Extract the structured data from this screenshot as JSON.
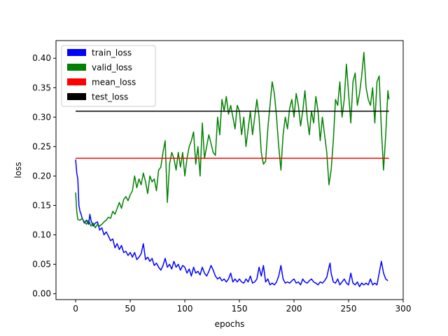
{
  "chart_data": {
    "type": "line",
    "title": "",
    "xlabel": "epochs",
    "ylabel": "loss",
    "xlim": [
      -18,
      300
    ],
    "ylim": [
      -0.01,
      0.43
    ],
    "xticks": [
      0,
      50,
      100,
      150,
      200,
      250,
      300
    ],
    "xtick_labels": [
      "0",
      "50",
      "100",
      "150",
      "200",
      "250",
      "300"
    ],
    "yticks": [
      0.0,
      0.05,
      0.1,
      0.15,
      0.2,
      0.25,
      0.3,
      0.35,
      0.4
    ],
    "ytick_labels": [
      "0.00",
      "0.05",
      "0.10",
      "0.15",
      "0.20",
      "0.25",
      "0.30",
      "0.35",
      "0.40"
    ],
    "grid": false,
    "legend_position": "top-left",
    "series": [
      {
        "name": "train_loss",
        "color": "#0000ff",
        "points": [
          [
            0,
            0.228
          ],
          [
            1,
            0.205
          ],
          [
            2,
            0.195
          ],
          [
            3,
            0.15
          ],
          [
            4,
            0.14
          ],
          [
            5,
            0.135
          ],
          [
            6,
            0.128
          ],
          [
            8,
            0.12
          ],
          [
            10,
            0.125
          ],
          [
            12,
            0.118
          ],
          [
            13,
            0.135
          ],
          [
            14,
            0.125
          ],
          [
            16,
            0.115
          ],
          [
            18,
            0.12
          ],
          [
            20,
            0.122
          ],
          [
            22,
            0.108
          ],
          [
            24,
            0.112
          ],
          [
            26,
            0.1
          ],
          [
            28,
            0.105
          ],
          [
            30,
            0.098
          ],
          [
            32,
            0.09
          ],
          [
            34,
            0.093
          ],
          [
            36,
            0.078
          ],
          [
            38,
            0.085
          ],
          [
            40,
            0.075
          ],
          [
            42,
            0.082
          ],
          [
            44,
            0.07
          ],
          [
            46,
            0.072
          ],
          [
            48,
            0.065
          ],
          [
            50,
            0.07
          ],
          [
            52,
            0.062
          ],
          [
            54,
            0.07
          ],
          [
            56,
            0.058
          ],
          [
            58,
            0.062
          ],
          [
            60,
            0.068
          ],
          [
            62,
            0.085
          ],
          [
            64,
            0.058
          ],
          [
            66,
            0.062
          ],
          [
            68,
            0.055
          ],
          [
            70,
            0.06
          ],
          [
            72,
            0.048
          ],
          [
            74,
            0.052
          ],
          [
            76,
            0.045
          ],
          [
            78,
            0.04
          ],
          [
            80,
            0.048
          ],
          [
            82,
            0.06
          ],
          [
            84,
            0.045
          ],
          [
            86,
            0.05
          ],
          [
            88,
            0.042
          ],
          [
            90,
            0.055
          ],
          [
            92,
            0.045
          ],
          [
            94,
            0.05
          ],
          [
            96,
            0.04
          ],
          [
            98,
            0.048
          ],
          [
            100,
            0.045
          ],
          [
            102,
            0.035
          ],
          [
            104,
            0.042
          ],
          [
            106,
            0.03
          ],
          [
            108,
            0.045
          ],
          [
            110,
            0.035
          ],
          [
            112,
            0.038
          ],
          [
            114,
            0.032
          ],
          [
            116,
            0.045
          ],
          [
            118,
            0.035
          ],
          [
            120,
            0.03
          ],
          [
            122,
            0.038
          ],
          [
            124,
            0.048
          ],
          [
            126,
            0.04
          ],
          [
            128,
            0.03
          ],
          [
            130,
            0.025
          ],
          [
            132,
            0.028
          ],
          [
            134,
            0.022
          ],
          [
            136,
            0.025
          ],
          [
            138,
            0.02
          ],
          [
            140,
            0.025
          ],
          [
            142,
            0.035
          ],
          [
            144,
            0.02
          ],
          [
            146,
            0.025
          ],
          [
            148,
            0.02
          ],
          [
            150,
            0.025
          ],
          [
            152,
            0.02
          ],
          [
            154,
            0.018
          ],
          [
            156,
            0.025
          ],
          [
            158,
            0.02
          ],
          [
            160,
            0.03
          ],
          [
            162,
            0.018
          ],
          [
            164,
            0.02
          ],
          [
            166,
            0.025
          ],
          [
            168,
            0.045
          ],
          [
            170,
            0.03
          ],
          [
            172,
            0.048
          ],
          [
            174,
            0.02
          ],
          [
            176,
            0.025
          ],
          [
            178,
            0.015
          ],
          [
            180,
            0.018
          ],
          [
            182,
            0.015
          ],
          [
            184,
            0.02
          ],
          [
            186,
            0.03
          ],
          [
            188,
            0.048
          ],
          [
            190,
            0.025
          ],
          [
            192,
            0.018
          ],
          [
            194,
            0.02
          ],
          [
            196,
            0.018
          ],
          [
            198,
            0.022
          ],
          [
            200,
            0.025
          ],
          [
            202,
            0.018
          ],
          [
            204,
            0.02
          ],
          [
            206,
            0.015
          ],
          [
            208,
            0.025
          ],
          [
            210,
            0.02
          ],
          [
            212,
            0.018
          ],
          [
            214,
            0.022
          ],
          [
            216,
            0.025
          ],
          [
            218,
            0.02
          ],
          [
            220,
            0.018
          ],
          [
            222,
            0.015
          ],
          [
            224,
            0.02
          ],
          [
            226,
            0.018
          ],
          [
            228,
            0.022
          ],
          [
            230,
            0.028
          ],
          [
            232,
            0.045
          ],
          [
            233,
            0.052
          ],
          [
            234,
            0.035
          ],
          [
            236,
            0.02
          ],
          [
            238,
            0.018
          ],
          [
            240,
            0.025
          ],
          [
            242,
            0.015
          ],
          [
            244,
            0.02
          ],
          [
            246,
            0.025
          ],
          [
            248,
            0.018
          ],
          [
            250,
            0.015
          ],
          [
            252,
            0.035
          ],
          [
            254,
            0.018
          ],
          [
            256,
            0.015
          ],
          [
            258,
            0.02
          ],
          [
            260,
            0.012
          ],
          [
            262,
            0.018
          ],
          [
            264,
            0.015
          ],
          [
            266,
            0.018
          ],
          [
            268,
            0.015
          ],
          [
            270,
            0.025
          ],
          [
            272,
            0.015
          ],
          [
            274,
            0.018
          ],
          [
            276,
            0.015
          ],
          [
            278,
            0.035
          ],
          [
            280,
            0.055
          ],
          [
            282,
            0.035
          ],
          [
            284,
            0.025
          ],
          [
            286,
            0.022
          ]
        ]
      },
      {
        "name": "valid_loss",
        "color": "#008000",
        "points": [
          [
            0,
            0.172
          ],
          [
            1,
            0.14
          ],
          [
            2,
            0.126
          ],
          [
            4,
            0.125
          ],
          [
            6,
            0.128
          ],
          [
            8,
            0.122
          ],
          [
            10,
            0.118
          ],
          [
            12,
            0.125
          ],
          [
            14,
            0.115
          ],
          [
            16,
            0.12
          ],
          [
            18,
            0.112
          ],
          [
            20,
            0.118
          ],
          [
            22,
            0.115
          ],
          [
            24,
            0.118
          ],
          [
            26,
            0.122
          ],
          [
            28,
            0.125
          ],
          [
            30,
            0.13
          ],
          [
            32,
            0.128
          ],
          [
            34,
            0.14
          ],
          [
            36,
            0.135
          ],
          [
            38,
            0.145
          ],
          [
            40,
            0.155
          ],
          [
            42,
            0.145
          ],
          [
            44,
            0.16
          ],
          [
            46,
            0.165
          ],
          [
            48,
            0.158
          ],
          [
            50,
            0.168
          ],
          [
            52,
            0.175
          ],
          [
            54,
            0.2
          ],
          [
            56,
            0.18
          ],
          [
            58,
            0.195
          ],
          [
            60,
            0.185
          ],
          [
            62,
            0.205
          ],
          [
            64,
            0.19
          ],
          [
            66,
            0.17
          ],
          [
            68,
            0.2
          ],
          [
            70,
            0.19
          ],
          [
            72,
            0.195
          ],
          [
            74,
            0.175
          ],
          [
            76,
            0.21
          ],
          [
            78,
            0.215
          ],
          [
            80,
            0.24
          ],
          [
            82,
            0.26
          ],
          [
            84,
            0.155
          ],
          [
            86,
            0.22
          ],
          [
            88,
            0.24
          ],
          [
            90,
            0.23
          ],
          [
            92,
            0.21
          ],
          [
            94,
            0.24
          ],
          [
            96,
            0.215
          ],
          [
            98,
            0.24
          ],
          [
            100,
            0.2
          ],
          [
            102,
            0.23
          ],
          [
            104,
            0.25
          ],
          [
            106,
            0.26
          ],
          [
            108,
            0.275
          ],
          [
            110,
            0.22
          ],
          [
            112,
            0.25
          ],
          [
            114,
            0.2
          ],
          [
            116,
            0.29
          ],
          [
            118,
            0.23
          ],
          [
            120,
            0.25
          ],
          [
            122,
            0.27
          ],
          [
            124,
            0.255
          ],
          [
            126,
            0.24
          ],
          [
            128,
            0.235
          ],
          [
            130,
            0.3
          ],
          [
            132,
            0.27
          ],
          [
            134,
            0.33
          ],
          [
            136,
            0.31
          ],
          [
            138,
            0.335
          ],
          [
            140,
            0.305
          ],
          [
            142,
            0.32
          ],
          [
            144,
            0.3
          ],
          [
            146,
            0.28
          ],
          [
            148,
            0.32
          ],
          [
            150,
            0.31
          ],
          [
            152,
            0.27
          ],
          [
            154,
            0.3
          ],
          [
            156,
            0.25
          ],
          [
            158,
            0.28
          ],
          [
            160,
            0.31
          ],
          [
            162,
            0.27
          ],
          [
            164,
            0.3
          ],
          [
            166,
            0.33
          ],
          [
            168,
            0.3
          ],
          [
            170,
            0.24
          ],
          [
            172,
            0.22
          ],
          [
            174,
            0.225
          ],
          [
            176,
            0.28
          ],
          [
            178,
            0.32
          ],
          [
            180,
            0.36
          ],
          [
            182,
            0.34
          ],
          [
            184,
            0.3
          ],
          [
            186,
            0.25
          ],
          [
            188,
            0.21
          ],
          [
            190,
            0.27
          ],
          [
            192,
            0.3
          ],
          [
            194,
            0.28
          ],
          [
            196,
            0.315
          ],
          [
            198,
            0.33
          ],
          [
            200,
            0.3
          ],
          [
            202,
            0.34
          ],
          [
            204,
            0.32
          ],
          [
            206,
            0.285
          ],
          [
            208,
            0.31
          ],
          [
            210,
            0.345
          ],
          [
            212,
            0.3
          ],
          [
            214,
            0.27
          ],
          [
            216,
            0.31
          ],
          [
            218,
            0.29
          ],
          [
            220,
            0.335
          ],
          [
            222,
            0.31
          ],
          [
            224,
            0.26
          ],
          [
            226,
            0.3
          ],
          [
            228,
            0.27
          ],
          [
            230,
            0.24
          ],
          [
            232,
            0.185
          ],
          [
            234,
            0.21
          ],
          [
            236,
            0.26
          ],
          [
            238,
            0.33
          ],
          [
            240,
            0.32
          ],
          [
            242,
            0.36
          ],
          [
            244,
            0.3
          ],
          [
            246,
            0.33
          ],
          [
            248,
            0.39
          ],
          [
            250,
            0.34
          ],
          [
            252,
            0.29
          ],
          [
            254,
            0.36
          ],
          [
            256,
            0.375
          ],
          [
            258,
            0.32
          ],
          [
            260,
            0.34
          ],
          [
            262,
            0.37
          ],
          [
            264,
            0.41
          ],
          [
            266,
            0.35
          ],
          [
            268,
            0.33
          ],
          [
            270,
            0.32
          ],
          [
            272,
            0.35
          ],
          [
            274,
            0.29
          ],
          [
            276,
            0.36
          ],
          [
            278,
            0.37
          ],
          [
            280,
            0.28
          ],
          [
            282,
            0.21
          ],
          [
            284,
            0.27
          ],
          [
            286,
            0.345
          ],
          [
            287,
            0.33
          ]
        ]
      },
      {
        "name": "mean_loss",
        "color": "#ff0000",
        "points": [
          [
            0,
            0.23
          ],
          [
            287,
            0.23
          ]
        ]
      },
      {
        "name": "test_loss",
        "color": "#000000",
        "points": [
          [
            0,
            0.31
          ],
          [
            287,
            0.31
          ]
        ]
      }
    ]
  }
}
